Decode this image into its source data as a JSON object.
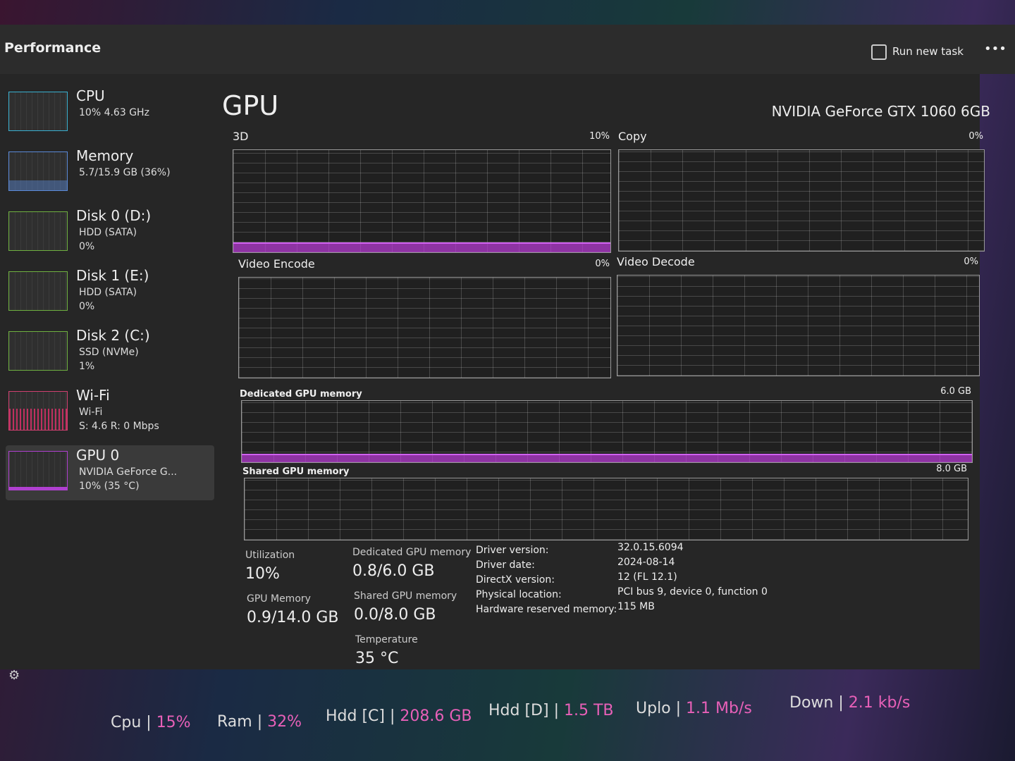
{
  "header": {
    "title": "Performance",
    "run_task": "Run new task"
  },
  "sidebar": [
    {
      "name": "CPU",
      "lines": [
        "10% 4.63 GHz"
      ]
    },
    {
      "name": "Memory",
      "lines": [
        "5.7/15.9 GB (36%)"
      ]
    },
    {
      "name": "Disk 0 (D:)",
      "lines": [
        "HDD (SATA)",
        "0%"
      ]
    },
    {
      "name": "Disk 1 (E:)",
      "lines": [
        "HDD (SATA)",
        "0%"
      ]
    },
    {
      "name": "Disk 2 (C:)",
      "lines": [
        "SSD (NVMe)",
        "1%"
      ]
    },
    {
      "name": "Wi-Fi",
      "lines": [
        "Wi-Fi",
        "S: 4.6 R: 0 Mbps"
      ]
    },
    {
      "name": "GPU 0",
      "lines": [
        "NVIDIA GeForce G...",
        "10% (35 °C)"
      ]
    }
  ],
  "main": {
    "title": "GPU",
    "device": "NVIDIA GeForce GTX 1060 6GB",
    "graphs": [
      {
        "label": "3D",
        "value": "10%"
      },
      {
        "label": "Copy",
        "value": "0%"
      },
      {
        "label": "Video Encode",
        "value": "0%"
      },
      {
        "label": "Video Decode",
        "value": "0%"
      },
      {
        "label": "Dedicated GPU memory",
        "value": "6.0 GB"
      },
      {
        "label": "Shared GPU memory",
        "value": "8.0 GB"
      }
    ],
    "stats": [
      {
        "label": "Utilization",
        "value": "10%"
      },
      {
        "label": "Dedicated GPU memory",
        "value": "0.8/6.0 GB"
      },
      {
        "label": "GPU Memory",
        "value": "0.9/14.0 GB"
      },
      {
        "label": "Shared GPU memory",
        "value": "0.0/8.0 GB"
      },
      {
        "label": "Temperature",
        "value": "35 °C"
      }
    ],
    "details": [
      {
        "key": "Driver version:",
        "value": "32.0.15.6094"
      },
      {
        "key": "Driver date:",
        "value": "2024-08-14"
      },
      {
        "key": "DirectX version:",
        "value": "12 (FL 12.1)"
      },
      {
        "key": "Physical location:",
        "value": "PCI bus 9, device 0, function 0"
      },
      {
        "key": "Hardware reserved memory:",
        "value": "115 MB"
      }
    ]
  },
  "status_bar": [
    {
      "label": "Cpu |",
      "value": "15%"
    },
    {
      "label": "Ram |",
      "value": "32%"
    },
    {
      "label": "Hdd [C] |",
      "value": "208.6 GB"
    },
    {
      "label": "Hdd [D] |",
      "value": "1.5 TB"
    },
    {
      "label": "Uplo |",
      "value": "1.1 Mb/s"
    },
    {
      "label": "Down |",
      "value": "2.1 kb/s"
    }
  ]
}
